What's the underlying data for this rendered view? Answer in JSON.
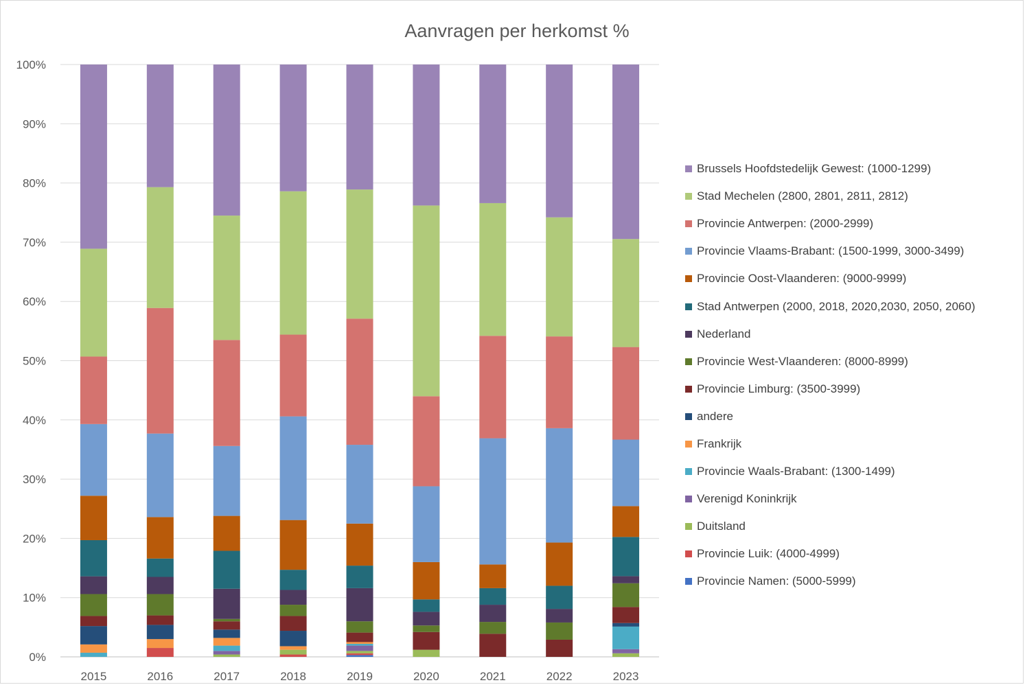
{
  "chart_data": {
    "type": "bar",
    "stacked": true,
    "percent_stacked": true,
    "title": "Aanvragen per herkomst %",
    "xlabel": "",
    "ylabel": "",
    "ylim": [
      0,
      100
    ],
    "y_ticks": [
      "0%",
      "10%",
      "20%",
      "30%",
      "40%",
      "50%",
      "60%",
      "70%",
      "80%",
      "90%",
      "100%"
    ],
    "grid": "horizontal",
    "legend_position": "right",
    "categories": [
      "2015",
      "2016",
      "2017",
      "2018",
      "2019",
      "2020",
      "2021",
      "2022",
      "2023"
    ],
    "series": [
      {
        "name": "Provincie Namen: (5000-5999)",
        "color": "#4472c4",
        "values": [
          0,
          0,
          0,
          0,
          0.3,
          0,
          0,
          0,
          0
        ]
      },
      {
        "name": "Provincie Luik: (4000-4999)",
        "color": "#d14d4d",
        "values": [
          0,
          1.5,
          0,
          0.4,
          0.3,
          0,
          0,
          0,
          0
        ]
      },
      {
        "name": "Duitsland",
        "color": "#9bbb59",
        "values": [
          0,
          0,
          0.4,
          0.8,
          0.4,
          1.2,
          0,
          0,
          0.6
        ]
      },
      {
        "name": "Verenigd Koninkrijk",
        "color": "#8064a2",
        "values": [
          0,
          0,
          0.6,
          0,
          0.9,
          0,
          0,
          0,
          0.7
        ]
      },
      {
        "name": "Provincie Waals-Brabant: (1300-1499)",
        "color": "#4bacc6",
        "values": [
          0.7,
          0,
          0.9,
          0,
          0.3,
          0,
          0,
          0,
          3.8
        ]
      },
      {
        "name": "Frankrijk",
        "color": "#f79646",
        "values": [
          1.4,
          1.5,
          1.3,
          0.6,
          0.3,
          0,
          0,
          0,
          0
        ]
      },
      {
        "name": "andere",
        "color": "#254e7a",
        "values": [
          3.1,
          2.4,
          1.4,
          2.6,
          0,
          0,
          0,
          0,
          0.6
        ]
      },
      {
        "name": "Provincie Limburg: (3500-3999)",
        "color": "#7b2a2a",
        "values": [
          1.7,
          1.6,
          1.4,
          2.5,
          1.6,
          3.0,
          3.9,
          2.9,
          2.7
        ]
      },
      {
        "name": "Provincie West-Vlaanderen: (8000-8999)",
        "color": "#5f7a2c",
        "values": [
          3.7,
          3.6,
          0.4,
          1.9,
          1.9,
          1.1,
          2.0,
          2.9,
          4.0
        ]
      },
      {
        "name": "Nederland",
        "color": "#4d3a5e",
        "values": [
          3.0,
          2.9,
          5.1,
          2.5,
          5.6,
          2.3,
          2.9,
          2.3,
          1.2
        ]
      },
      {
        "name": "Stad Antwerpen (2000, 2018, 2020,2030, 2050, 2060)",
        "color": "#236b7a",
        "values": [
          6.1,
          3.1,
          6.4,
          3.4,
          3.8,
          2.1,
          2.8,
          3.9,
          6.6
        ]
      },
      {
        "name": "Provincie Oost-Vlaanderen: (9000-9999)",
        "color": "#b85a0a",
        "values": [
          7.5,
          7.0,
          5.9,
          8.4,
          7.1,
          6.3,
          4.0,
          7.3,
          5.2
        ]
      },
      {
        "name": "Provincie Vlaams-Brabant: (1500-1999, 3000-3499)",
        "color": "#739cd0",
        "values": [
          12.1,
          14.1,
          11.8,
          17.5,
          13.3,
          12.8,
          21.3,
          19.3,
          11.2
        ]
      },
      {
        "name": "Provincie Antwerpen: (2000-2999)",
        "color": "#d4736f",
        "values": [
          11.4,
          21.2,
          17.9,
          13.8,
          21.3,
          15.2,
          17.3,
          15.5,
          15.6
        ]
      },
      {
        "name": "Stad Mechelen (2800, 2801, 2811, 2812)",
        "color": "#b0ca7a",
        "values": [
          18.2,
          20.4,
          21.0,
          24.2,
          21.8,
          32.2,
          22.4,
          20.1,
          18.2
        ]
      },
      {
        "name": "Brussels Hoofdstedelijk Gewest: (1000-1299)",
        "color": "#9a84b6",
        "values": [
          31.1,
          20.7,
          25.5,
          21.4,
          21.1,
          23.8,
          23.4,
          25.8,
          29.4
        ]
      }
    ]
  }
}
